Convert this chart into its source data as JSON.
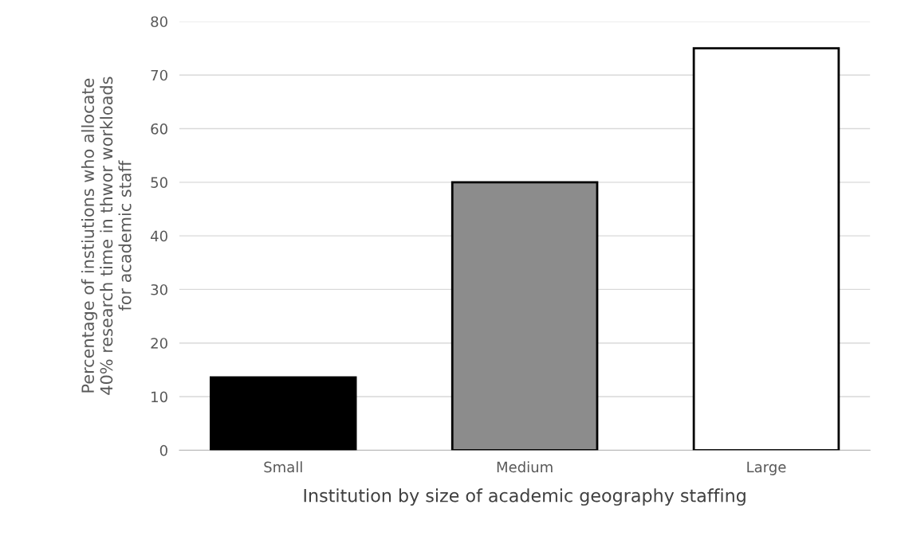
{
  "chart_data": {
    "type": "bar",
    "xlabel": "Institution by size of academic geography staffing",
    "ylabel": "Percentage of instiutions who allocate\n40% research time in thwor workloads\nfor academic staff",
    "categories": [
      "Small",
      "Medium",
      "Large"
    ],
    "values": [
      13.6,
      50,
      75
    ],
    "colors": [
      "#000000",
      "#8c8c8c",
      "#ffffff"
    ],
    "ylim": [
      0,
      80
    ],
    "yticks": [
      0,
      10,
      20,
      30,
      40,
      50,
      60,
      70,
      80
    ],
    "grid": "y",
    "legend": false
  }
}
